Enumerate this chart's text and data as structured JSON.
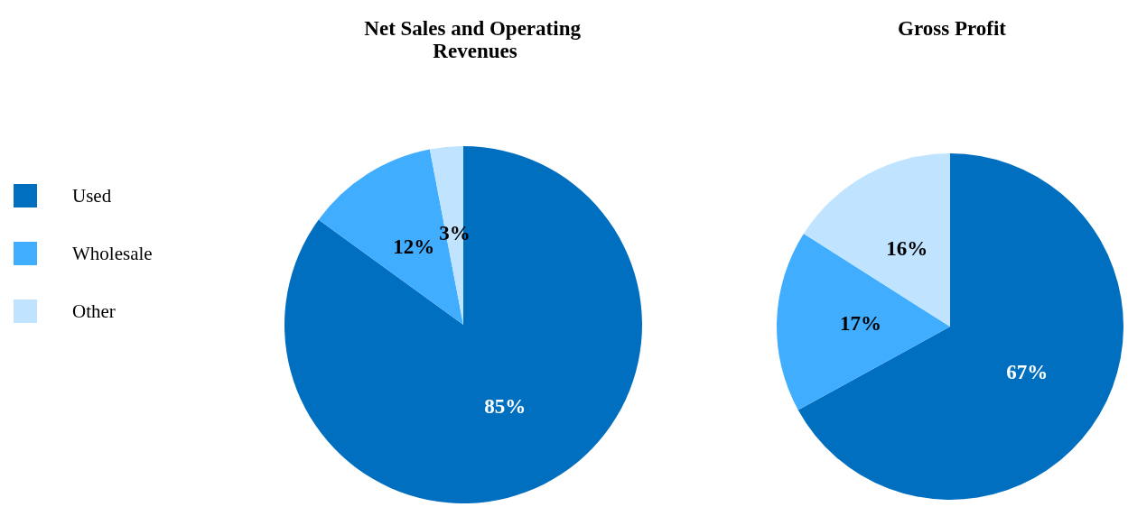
{
  "chart_data": [
    {
      "type": "pie",
      "title": "Net Sales and Operating Revenues",
      "categories": [
        "Used",
        "Wholesale",
        "Other"
      ],
      "values": [
        85,
        12,
        3
      ],
      "colors": [
        "#006fc0",
        "#41adff",
        "#c0e4ff"
      ],
      "legend": "left",
      "value_labels": [
        "85%",
        "12%",
        "3%"
      ]
    },
    {
      "type": "pie",
      "title": "Gross Profit",
      "categories": [
        null,
        null,
        null
      ],
      "values": [
        67,
        17,
        16
      ],
      "colors": [
        "#006fc0",
        "#41adff",
        "#c0e4ff"
      ],
      "value_labels": [
        "67%",
        "17%",
        "16%"
      ]
    }
  ]
}
